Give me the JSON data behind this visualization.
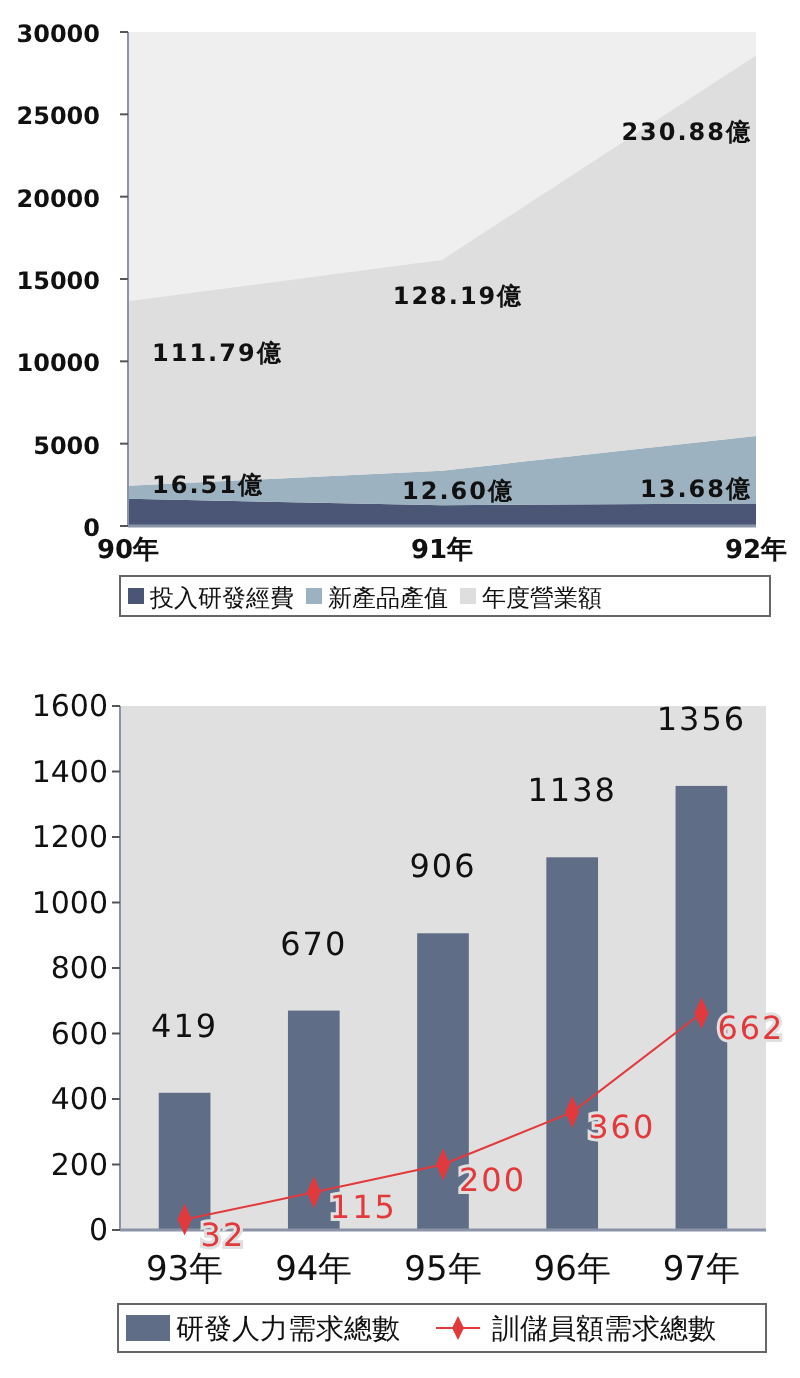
{
  "chart_data": [
    {
      "type": "area",
      "stacked": true,
      "categories": [
        "90年",
        "91年",
        "92年"
      ],
      "ylim": [
        0,
        30000
      ],
      "yticks": [
        0,
        5000,
        10000,
        15000,
        20000,
        25000,
        30000
      ],
      "grid": false,
      "legend": "bottom",
      "series": [
        {
          "name": "投入研發經費",
          "color": "#4b5677",
          "values": [
            1650,
            1260,
            1370
          ]
        },
        {
          "name": "新產品產值",
          "color": "#9db2c1",
          "values": [
            800,
            2100,
            4100
          ]
        },
        {
          "name": "年度營業額",
          "color": "#dedede",
          "values": [
            11200,
            12800,
            23100
          ]
        }
      ],
      "annotations": [
        {
          "text": "16.51億",
          "x": "90年",
          "y": 1650
        },
        {
          "text": "12.60億",
          "x": "91年",
          "y": 1260
        },
        {
          "text": "13.68億",
          "x": "92年",
          "y": 1370
        },
        {
          "text": "111.79億",
          "x": "90年",
          "y": 13650
        },
        {
          "text": "128.19億",
          "x": "91年",
          "y": 16160
        },
        {
          "text": "230.88億",
          "x": "92年",
          "y": 28570
        }
      ]
    },
    {
      "type": "bar",
      "categories": [
        "93年",
        "94年",
        "95年",
        "96年",
        "97年"
      ],
      "ylim": [
        0,
        1600
      ],
      "yticks": [
        0,
        200,
        400,
        600,
        800,
        1000,
        1200,
        1400,
        1600
      ],
      "grid": false,
      "legend": "bottom",
      "data_labels": true,
      "marker": "diamond",
      "series": [
        {
          "name": "研發人力需求總數",
          "color": "#5f6e86",
          "values": [
            419,
            670,
            906,
            1138,
            1356
          ]
        },
        {
          "name": "訓儲員額需求總數",
          "type": "line",
          "color": "#e2393c",
          "values": [
            32,
            115,
            200,
            360,
            662
          ]
        }
      ]
    }
  ]
}
